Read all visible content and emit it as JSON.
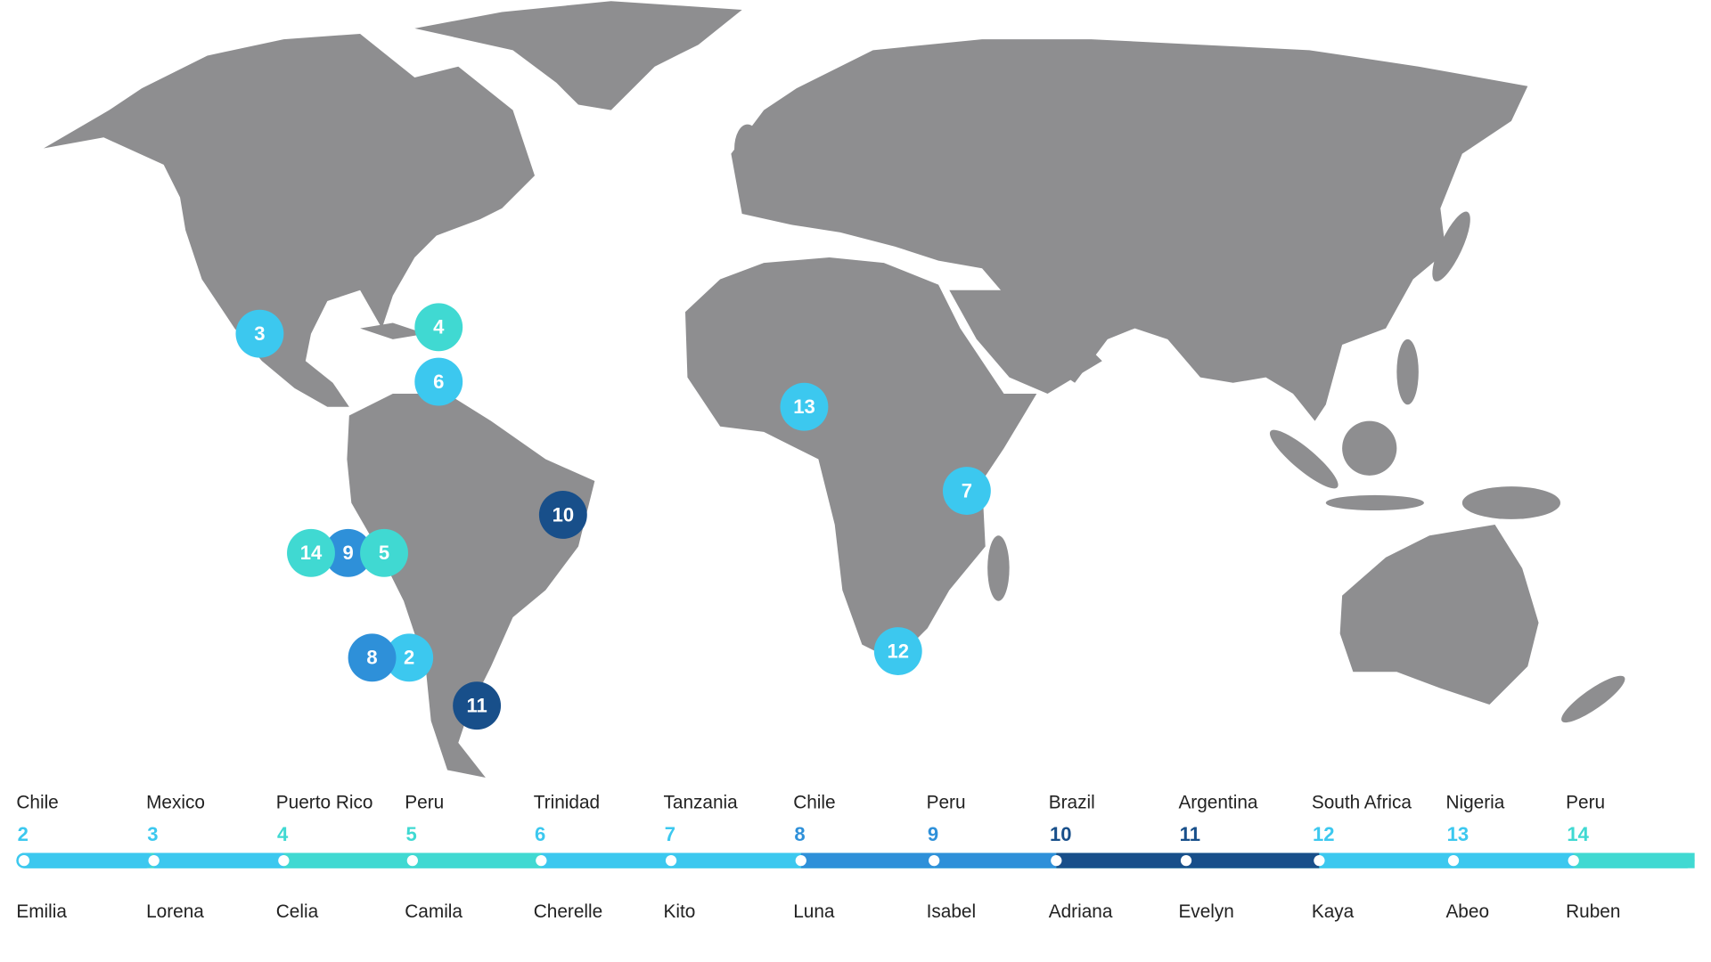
{
  "entries": [
    {
      "country": "Chile",
      "number": 2,
      "name": "Emilia",
      "color": "#3cc8ef"
    },
    {
      "country": "Mexico",
      "number": 3,
      "name": "Lorena",
      "color": "#3cc8ef"
    },
    {
      "country": "Puerto Rico",
      "number": 4,
      "name": "Celia",
      "color": "#40d9d2"
    },
    {
      "country": "Peru",
      "number": 5,
      "name": "Camila",
      "color": "#40d9d2"
    },
    {
      "country": "Trinidad",
      "number": 6,
      "name": "Cherelle",
      "color": "#3cc8ef"
    },
    {
      "country": "Tanzania",
      "number": 7,
      "name": "Kito",
      "color": "#3cc8ef"
    },
    {
      "country": "Chile",
      "number": 8,
      "name": "Luna",
      "color": "#2e90d9"
    },
    {
      "country": "Peru",
      "number": 9,
      "name": "Isabel",
      "color": "#2e90d9"
    },
    {
      "country": "Brazil",
      "number": 10,
      "name": "Adriana",
      "color": "#184f8a"
    },
    {
      "country": "Argentina",
      "number": 11,
      "name": "Evelyn",
      "color": "#184f8a"
    },
    {
      "country": "South Africa",
      "number": 12,
      "name": "Kaya",
      "color": "#3cc8ef"
    },
    {
      "country": "Nigeria",
      "number": 13,
      "name": "Abeo",
      "color": "#3cc8ef"
    },
    {
      "country": "Peru",
      "number": 14,
      "name": "Ruben",
      "color": "#40d9d2"
    }
  ]
}
